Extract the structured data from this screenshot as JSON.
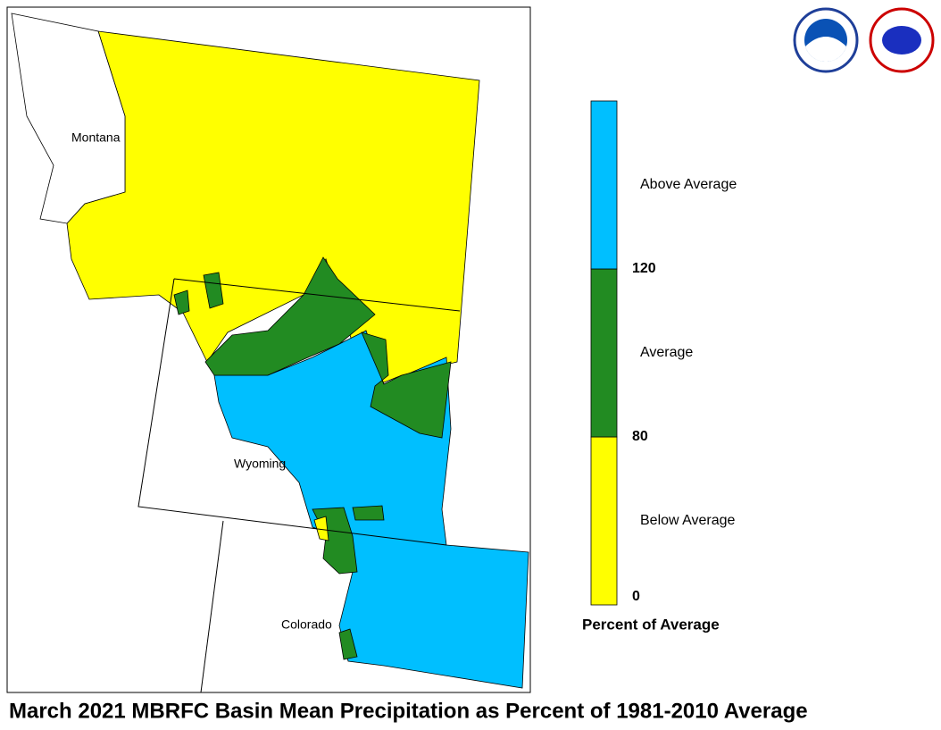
{
  "title": "March 2021 MBRFC Basin Mean Precipitation as Percent of 1981-2010 Average",
  "map": {
    "state_labels": [
      "Montana",
      "Wyoming",
      "Colorado"
    ]
  },
  "legend": {
    "title": "Percent of Average",
    "classes": [
      {
        "label": "Below Average",
        "color": "#ffff00"
      },
      {
        "label": "Average",
        "color": "#228b22"
      },
      {
        "label": "Above Average",
        "color": "#00bfff"
      }
    ],
    "breaks": [
      0,
      80,
      120
    ]
  }
}
